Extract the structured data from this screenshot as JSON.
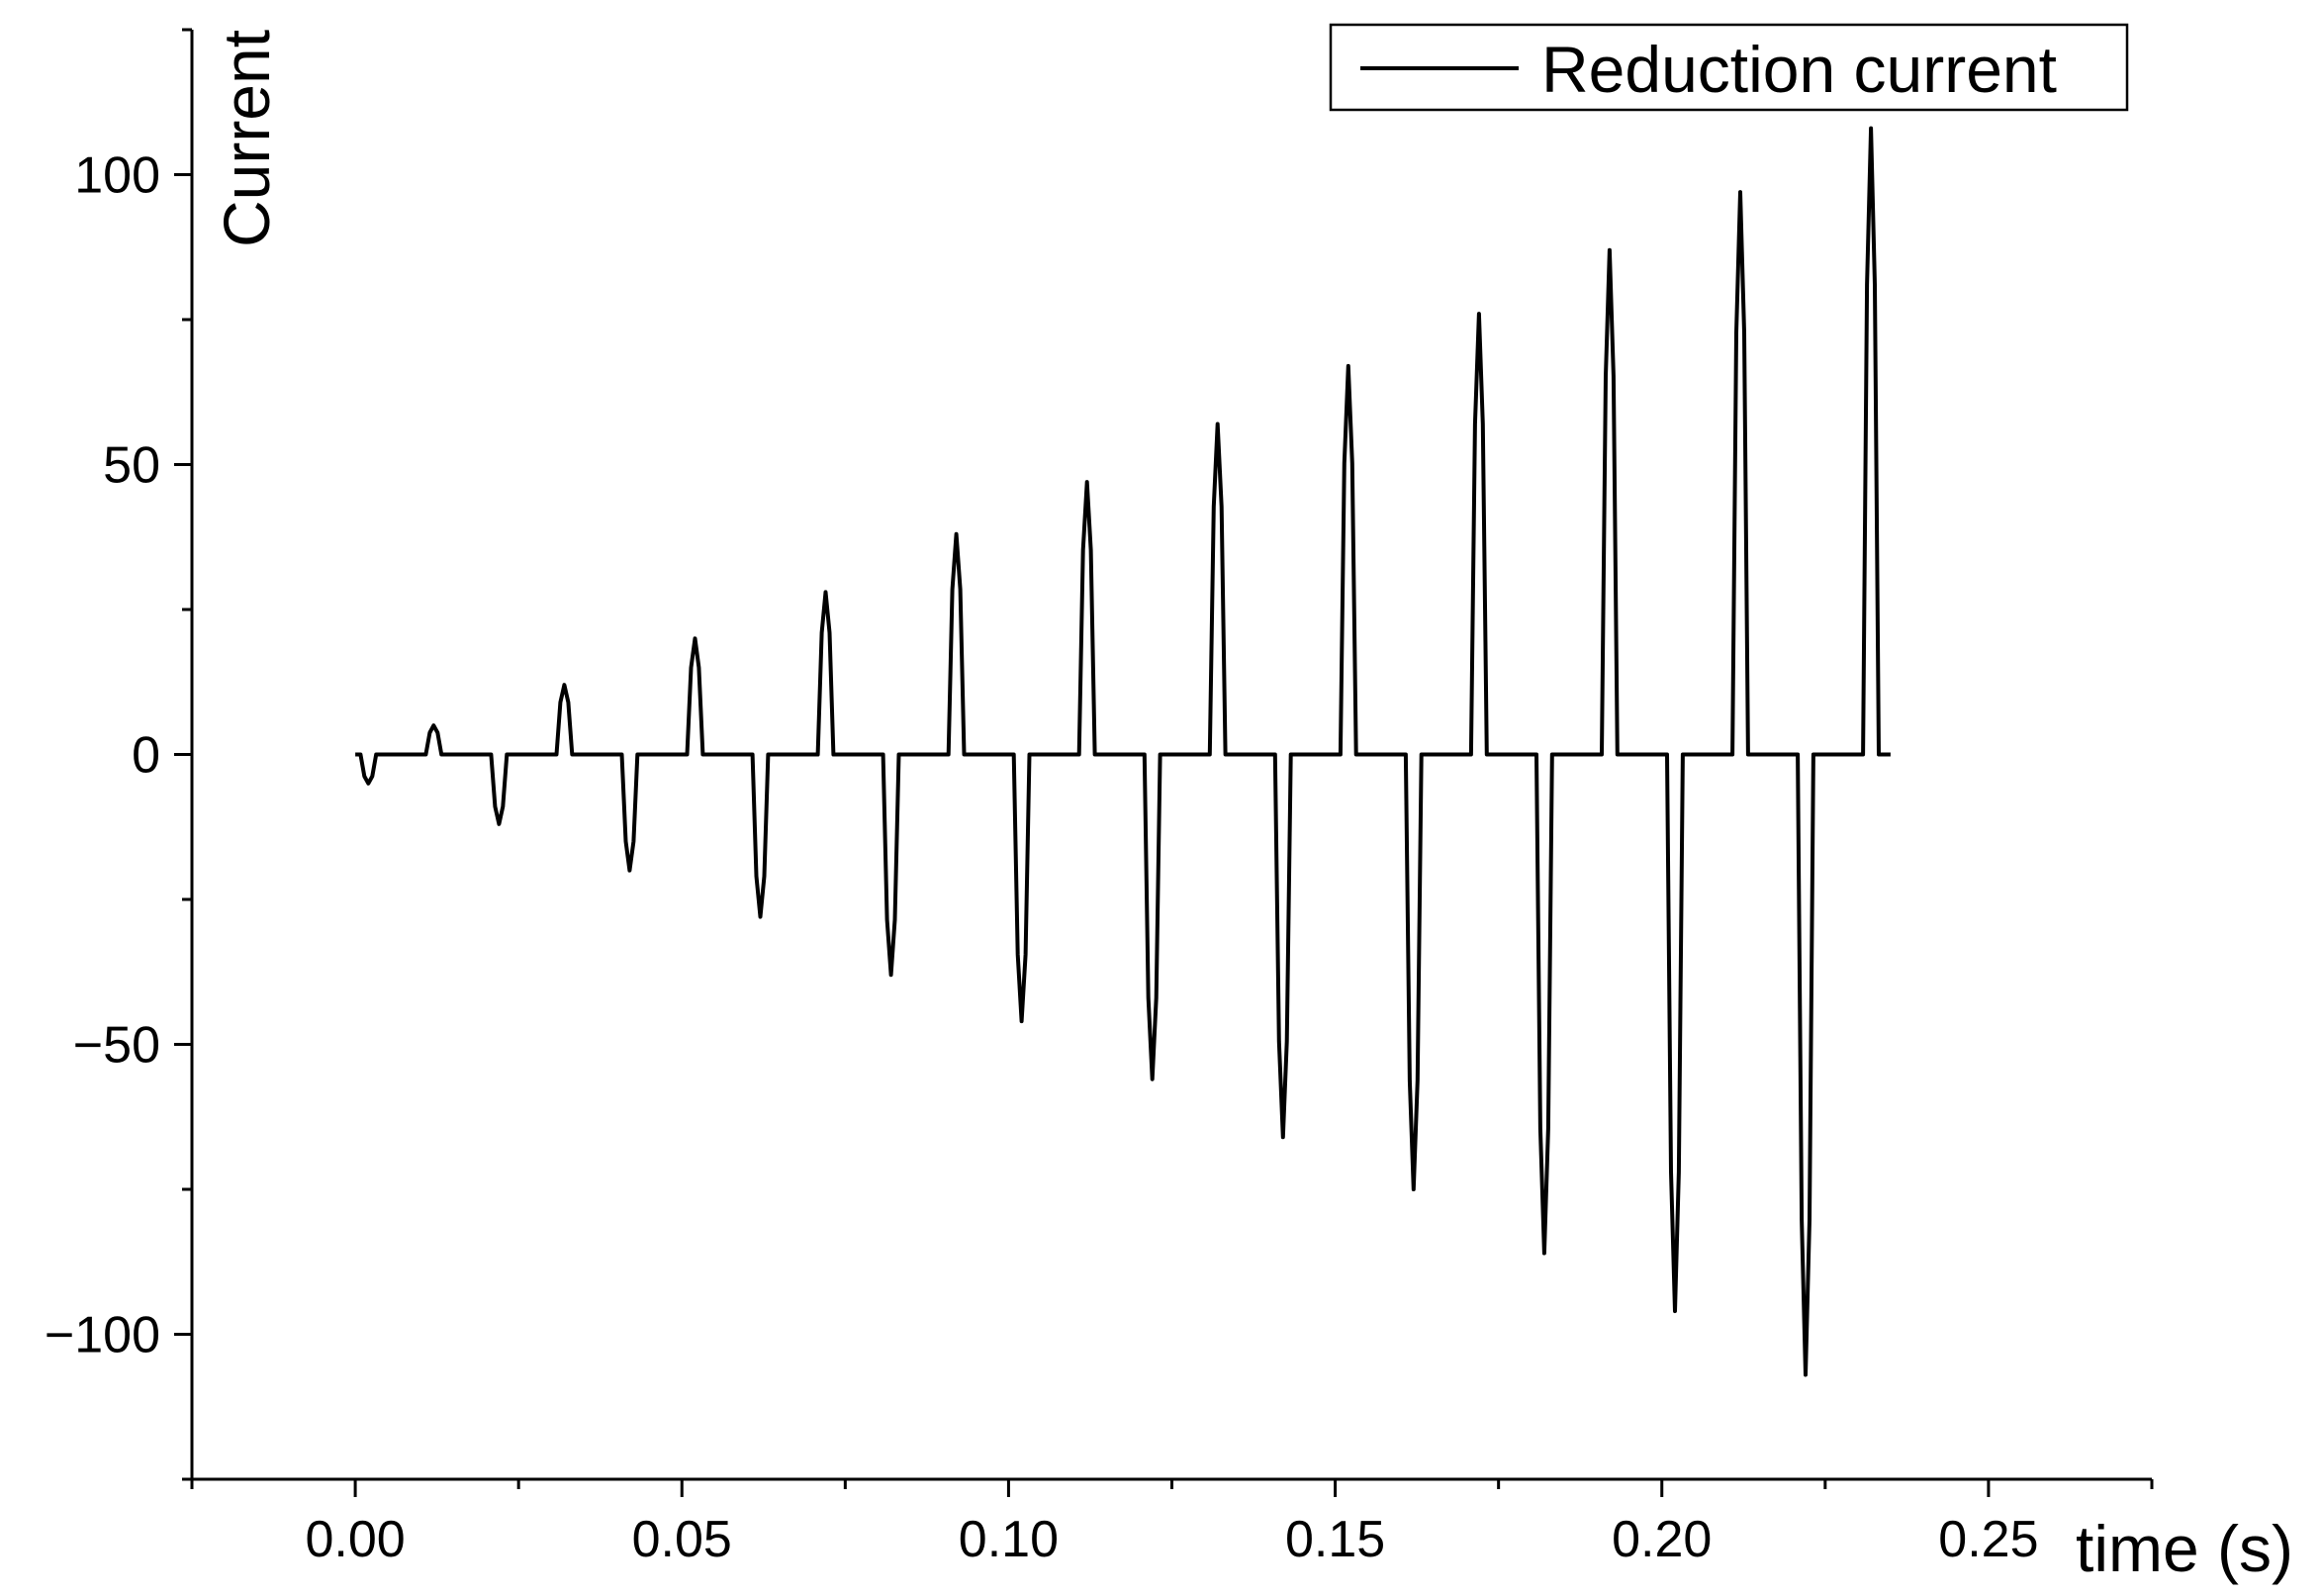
{
  "chart_data": {
    "type": "line",
    "xlabel": "time (s)",
    "ylabel": "Current",
    "xlim": [
      -0.025,
      0.275
    ],
    "ylim": [
      -125,
      125
    ],
    "x_ticks": [
      0.0,
      0.05,
      0.1,
      0.15,
      0.2,
      0.25
    ],
    "x_tick_labels": [
      "0.00",
      "0.05",
      "0.10",
      "0.15",
      "0.20",
      "0.25"
    ],
    "y_ticks": [
      -100,
      -50,
      0,
      50,
      100
    ],
    "y_tick_labels": [
      "−100",
      "−50",
      "0",
      "50",
      "100"
    ],
    "grid": false,
    "legend_position": "top-right",
    "series": [
      {
        "name": "Reduction current",
        "color": "#000000",
        "pulse_period": 0.01,
        "negative_pulses": [
          {
            "t": 0.002,
            "peak": -5
          },
          {
            "t": 0.022,
            "peak": -12
          },
          {
            "t": 0.042,
            "peak": -20
          },
          {
            "t": 0.062,
            "peak": -28
          },
          {
            "t": 0.082,
            "peak": -38
          },
          {
            "t": 0.102,
            "peak": -46
          },
          {
            "t": 0.122,
            "peak": -56
          },
          {
            "t": 0.142,
            "peak": -66
          },
          {
            "t": 0.162,
            "peak": -75
          },
          {
            "t": 0.182,
            "peak": -86
          },
          {
            "t": 0.202,
            "peak": -96
          },
          {
            "t": 0.222,
            "peak": -107
          }
        ],
        "positive_pulses": [
          {
            "t": 0.012,
            "peak": 5
          },
          {
            "t": 0.032,
            "peak": 12
          },
          {
            "t": 0.052,
            "peak": 20
          },
          {
            "t": 0.072,
            "peak": 28
          },
          {
            "t": 0.092,
            "peak": 38
          },
          {
            "t": 0.112,
            "peak": 47
          },
          {
            "t": 0.132,
            "peak": 57
          },
          {
            "t": 0.152,
            "peak": 67
          },
          {
            "t": 0.172,
            "peak": 76
          },
          {
            "t": 0.192,
            "peak": 87
          },
          {
            "t": 0.212,
            "peak": 97
          },
          {
            "t": 0.232,
            "peak": 108
          }
        ],
        "x_start": 0.0,
        "x_end": 0.235
      }
    ]
  }
}
